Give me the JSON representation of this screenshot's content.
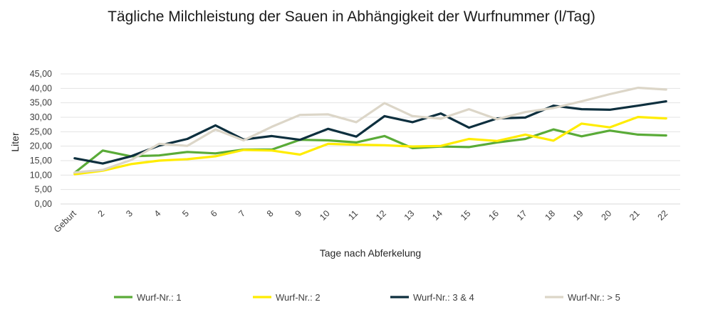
{
  "chart_data": {
    "type": "line",
    "title": "Tägliche Milchleistung der Sauen in Abhängigkeit der Wurfnummer (l/Tag)",
    "xlabel": "Tage nach Abferkelung",
    "ylabel": "Liter",
    "categories": [
      "Geburt",
      "2",
      "3",
      "4",
      "5",
      "6",
      "7",
      "8",
      "9",
      "10",
      "11",
      "12",
      "13",
      "14",
      "15",
      "16",
      "17",
      "18",
      "19",
      "20",
      "21",
      "22"
    ],
    "y_ticks": [
      "0,00",
      "5,00",
      "10,00",
      "15,00",
      "20,00",
      "25,00",
      "30,00",
      "35,00",
      "40,00",
      "45,00"
    ],
    "ylim": [
      0,
      45
    ],
    "grid": true,
    "legend_position": "bottom",
    "series": [
      {
        "name": "Wurf-Nr.: 1",
        "color": "#5aab38",
        "values": [
          10.8,
          18.5,
          16.5,
          16.8,
          18.0,
          17.5,
          18.8,
          18.8,
          22.2,
          22.0,
          21.3,
          23.5,
          19.3,
          19.9,
          19.7,
          21.3,
          22.5,
          25.8,
          23.4,
          25.4,
          24.0,
          23.7
        ]
      },
      {
        "name": "Wurf-Nr.: 2",
        "color": "#ffec00",
        "values": [
          10.3,
          11.5,
          13.8,
          15.0,
          15.5,
          16.5,
          18.7,
          18.5,
          17.1,
          20.8,
          20.5,
          20.3,
          19.9,
          20.1,
          22.5,
          21.8,
          24.0,
          21.9,
          27.8,
          26.5,
          30.1,
          29.6
        ]
      },
      {
        "name": "Wurf-Nr.: 3 & 4",
        "color": "#0d2f3e",
        "values": [
          15.8,
          14.0,
          16.5,
          20.2,
          22.5,
          27.2,
          22.3,
          23.5,
          22.2,
          26.0,
          23.3,
          30.4,
          28.3,
          31.3,
          26.4,
          29.6,
          29.9,
          34.0,
          32.8,
          32.6,
          34.0,
          35.5
        ]
      },
      {
        "name": "Wurf-Nr.: > 5",
        "color": "#dcd6c8",
        "values": [
          10.9,
          11.8,
          15.2,
          20.8,
          20.1,
          25.8,
          22.0,
          26.7,
          30.8,
          31.0,
          28.3,
          34.9,
          30.4,
          29.5,
          32.8,
          29.3,
          31.8,
          33.2,
          35.5,
          38.0,
          40.2,
          39.6
        ]
      }
    ]
  }
}
